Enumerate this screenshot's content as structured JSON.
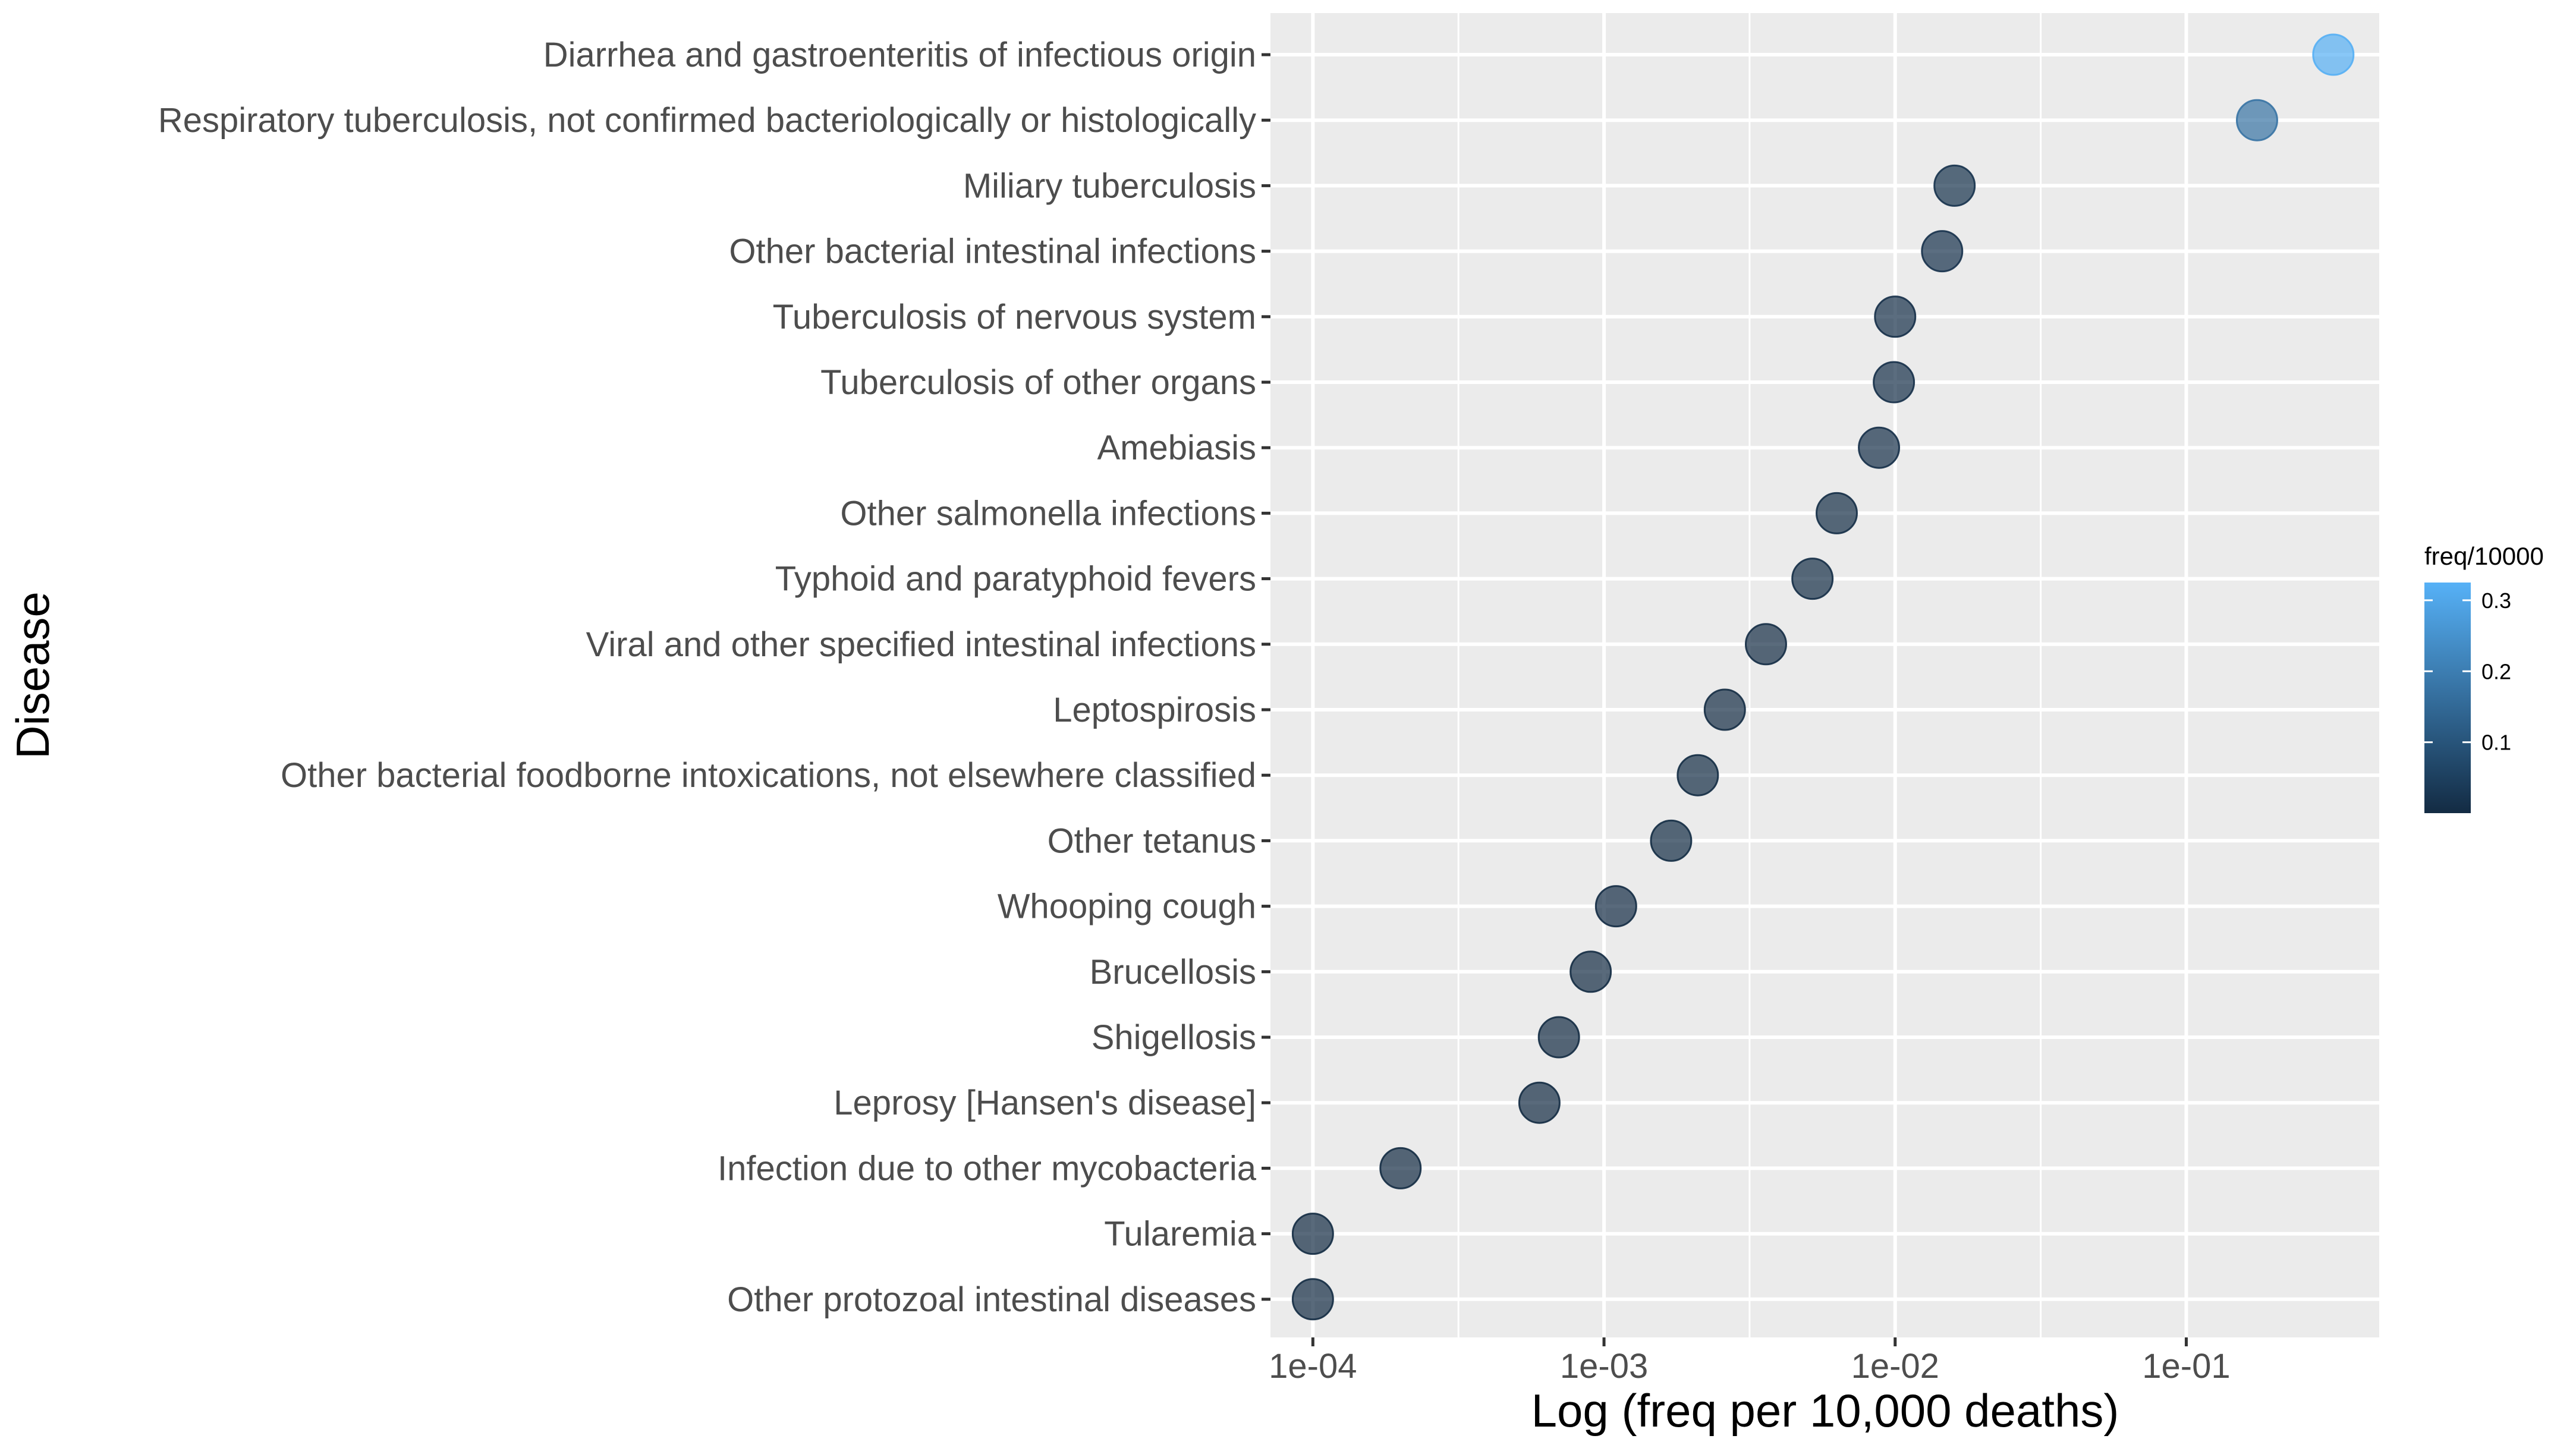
{
  "chart_data": {
    "type": "scatter",
    "title": "",
    "xlabel": "Log (freq per 10,000 deaths)",
    "ylabel": "Disease",
    "x_scale": "log10",
    "xlim": [
      7.15e-05,
      0.46
    ],
    "x_ticks": [
      0.0001,
      0.001,
      0.01,
      0.1
    ],
    "x_tick_labels": [
      "1e-04",
      "1e-03",
      "1e-02",
      "1e-01"
    ],
    "grid": true,
    "legend": {
      "title": "freq/10000",
      "placement": "right",
      "ticks": [
        0.1,
        0.2,
        0.3
      ],
      "tick_labels": [
        "0.1",
        "0.2",
        "0.3"
      ],
      "range": [
        0.0001,
        0.325
      ],
      "color_low": "#132B43",
      "color_high": "#56B1F7"
    },
    "series": [
      {
        "points": [
          {
            "disease": "Diarrhea and gastroenteritis of infectious origin",
            "x": 0.32
          },
          {
            "disease": "Respiratory tuberculosis, not confirmed bacteriologically or histologically",
            "x": 0.175
          },
          {
            "disease": "Miliary tuberculosis",
            "x": 0.016
          },
          {
            "disease": "Other bacterial intestinal infections",
            "x": 0.0145
          },
          {
            "disease": "Tuberculosis of nervous system",
            "x": 0.01
          },
          {
            "disease": "Tuberculosis of other organs",
            "x": 0.0099
          },
          {
            "disease": "Amebiasis",
            "x": 0.0088
          },
          {
            "disease": "Other salmonella infections",
            "x": 0.0063
          },
          {
            "disease": "Typhoid and paratyphoid fevers",
            "x": 0.0052
          },
          {
            "disease": "Viral and other specified intestinal infections",
            "x": 0.0036
          },
          {
            "disease": "Leptospirosis",
            "x": 0.0026
          },
          {
            "disease": "Other bacterial foodborne intoxications, not elsewhere classified",
            "x": 0.0021
          },
          {
            "disease": "Other tetanus",
            "x": 0.0017
          },
          {
            "disease": "Whooping cough",
            "x": 0.0011
          },
          {
            "disease": "Brucellosis",
            "x": 0.0009
          },
          {
            "disease": "Shigellosis",
            "x": 0.0007
          },
          {
            "disease": "Leprosy [Hansen's disease]",
            "x": 0.0006
          },
          {
            "disease": "Infection due to other mycobacteria",
            "x": 0.0002
          },
          {
            "disease": "Tularemia",
            "x": 0.0001
          },
          {
            "disease": "Other protozoal intestinal diseases",
            "x": 0.0001
          }
        ]
      }
    ]
  }
}
